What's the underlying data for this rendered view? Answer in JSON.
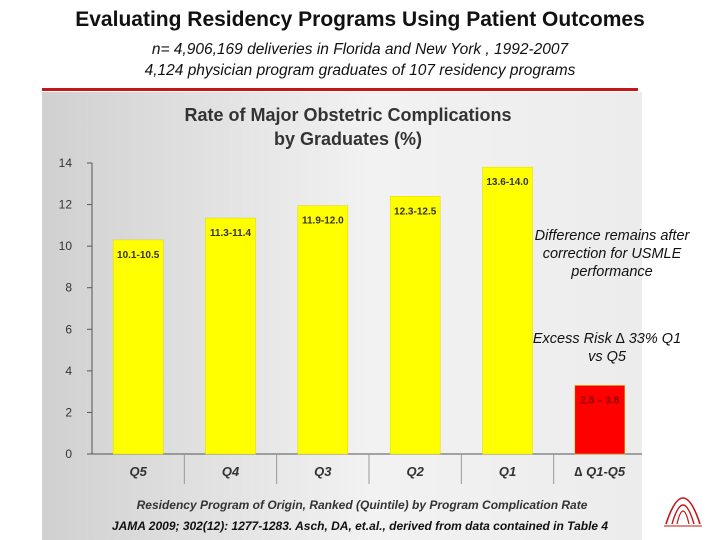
{
  "slide": {
    "title": "Evaluating Residency Programs Using Patient Outcomes",
    "subtitle_line1": "n= 4,906,169 deliveries in Florida and New York , 1992-2007",
    "subtitle_line2": "4,124 physician program graduates of 107 residency programs",
    "note_difference": "Difference remains after correction for USMLE performance",
    "note_excess_risk": "Excess Risk ∆ 33% Q1 vs Q5",
    "citation": "JAMA 2009; 302(12): 1277-1283. Asch, DA, et.al., derived from data contained in Table 4",
    "colors": {
      "accent_rule": "#c41616",
      "bar_yellow": "#ffff00",
      "bar_red": "#ff0000"
    },
    "logo_icon": "arch-logo-icon"
  },
  "chart_data": {
    "type": "bar",
    "title_line1": "Rate of Major Obstetric Complications",
    "title_line2": "by Graduates (%)",
    "xlabel": "Residency Program of Origin, Ranked (Quintile) by Program Complication Rate",
    "ylabel": "",
    "ylim": [
      0,
      14
    ],
    "yticks": [
      0,
      2,
      4,
      6,
      8,
      10,
      12,
      14
    ],
    "grid": false,
    "categories": [
      "Q5",
      "Q4",
      "Q3",
      "Q2",
      "Q1",
      "∆ Q1-Q5"
    ],
    "values": [
      10.3,
      11.35,
      11.95,
      12.4,
      13.8,
      3.3
    ],
    "data_labels": [
      "10.1-10.5",
      "11.3-11.4",
      "11.9-12.0",
      "12.3-12.5",
      "13.6-14.0",
      "2.8 – 3.8"
    ],
    "bar_colors": [
      "#ffff00",
      "#ffff00",
      "#ffff00",
      "#ffff00",
      "#ffff00",
      "#ff0000"
    ]
  }
}
